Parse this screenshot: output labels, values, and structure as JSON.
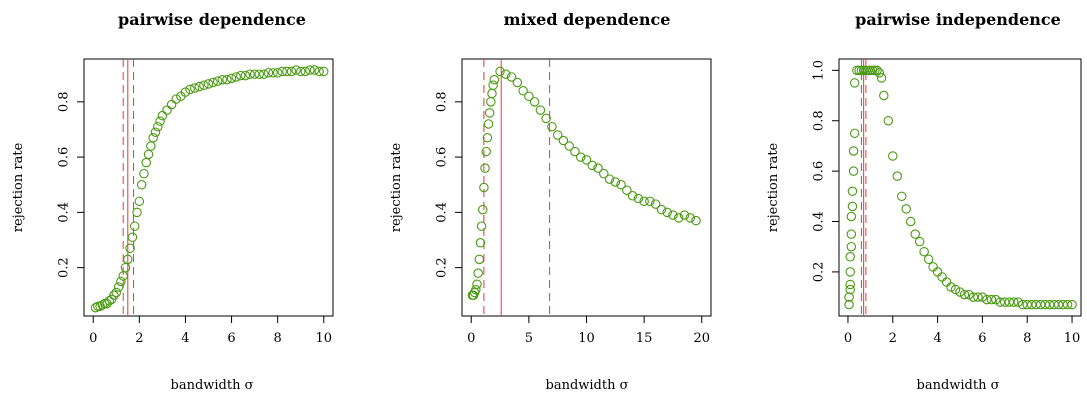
{
  "chart_data": [
    {
      "type": "scatter",
      "title": "pairwise dependence",
      "xlabel": "bandwidth σ",
      "ylabel": "rejection rate",
      "xlim": [
        -0.4,
        10.4
      ],
      "ylim": [
        0.025,
        0.955
      ],
      "xticks": [
        0,
        2,
        4,
        6,
        8,
        10
      ],
      "yticks": [
        0.2,
        0.4,
        0.6,
        0.8
      ],
      "vlines": {
        "solid": [
          1.5
        ],
        "dashed": [
          1.3,
          1.75
        ]
      },
      "series": [
        {
          "x": [
            0.1,
            0.2,
            0.3,
            0.4,
            0.5,
            0.6,
            0.7,
            0.8,
            0.9,
            1.0,
            1.1,
            1.2,
            1.3,
            1.4,
            1.5,
            1.6,
            1.7,
            1.8,
            1.9,
            2.0,
            2.1,
            2.2,
            2.3,
            2.4,
            2.5,
            2.6,
            2.7,
            2.8,
            2.9,
            3.0,
            3.2,
            3.4,
            3.6,
            3.8,
            4.0,
            4.2,
            4.4,
            4.6,
            4.8,
            5.0,
            5.2,
            5.4,
            5.6,
            5.8,
            6.0,
            6.2,
            6.4,
            6.6,
            6.8,
            7.0,
            7.2,
            7.4,
            7.6,
            7.8,
            8.0,
            8.2,
            8.4,
            8.6,
            8.8,
            9.0,
            9.2,
            9.4,
            9.6,
            9.8,
            10.0
          ],
          "y": [
            0.055,
            0.06,
            0.06,
            0.065,
            0.07,
            0.07,
            0.08,
            0.085,
            0.1,
            0.11,
            0.13,
            0.15,
            0.17,
            0.2,
            0.23,
            0.27,
            0.31,
            0.35,
            0.4,
            0.44,
            0.5,
            0.54,
            0.58,
            0.61,
            0.64,
            0.67,
            0.69,
            0.71,
            0.73,
            0.75,
            0.77,
            0.79,
            0.81,
            0.82,
            0.835,
            0.845,
            0.85,
            0.855,
            0.86,
            0.865,
            0.87,
            0.875,
            0.88,
            0.88,
            0.885,
            0.89,
            0.895,
            0.895,
            0.9,
            0.9,
            0.9,
            0.9,
            0.905,
            0.905,
            0.905,
            0.91,
            0.91,
            0.91,
            0.915,
            0.91,
            0.91,
            0.915,
            0.915,
            0.91,
            0.91
          ]
        }
      ]
    },
    {
      "type": "scatter",
      "title": "mixed dependence",
      "xlabel": "bandwidth σ",
      "ylabel": "rejection rate",
      "xlim": [
        -0.8,
        20.8
      ],
      "ylim": [
        0.025,
        0.955
      ],
      "xticks": [
        0,
        5,
        10,
        15,
        20
      ],
      "yticks": [
        0.2,
        0.4,
        0.6,
        0.8
      ],
      "vlines": {
        "solid": [
          2.6
        ],
        "dashed": [
          1.1,
          6.8
        ]
      },
      "series": [
        {
          "x": [
            0.1,
            0.2,
            0.3,
            0.4,
            0.5,
            0.6,
            0.7,
            0.8,
            0.9,
            1.0,
            1.1,
            1.2,
            1.3,
            1.4,
            1.5,
            1.6,
            1.7,
            1.8,
            1.9,
            2.0,
            2.5,
            3.0,
            3.5,
            4.0,
            4.5,
            5.0,
            5.5,
            6.0,
            6.5,
            7.0,
            7.5,
            8.0,
            8.5,
            9.0,
            9.5,
            10.0,
            10.5,
            11.0,
            11.5,
            12.0,
            12.5,
            13.0,
            13.5,
            14.0,
            14.5,
            15.0,
            15.5,
            16.0,
            16.5,
            17.0,
            17.5,
            18.0,
            18.5,
            19.0,
            19.5
          ],
          "y": [
            0.1,
            0.1,
            0.11,
            0.12,
            0.14,
            0.18,
            0.23,
            0.29,
            0.35,
            0.41,
            0.49,
            0.56,
            0.62,
            0.67,
            0.72,
            0.76,
            0.8,
            0.83,
            0.86,
            0.88,
            0.91,
            0.9,
            0.89,
            0.87,
            0.84,
            0.82,
            0.8,
            0.77,
            0.74,
            0.71,
            0.68,
            0.66,
            0.64,
            0.62,
            0.6,
            0.59,
            0.57,
            0.56,
            0.54,
            0.52,
            0.51,
            0.5,
            0.48,
            0.46,
            0.45,
            0.44,
            0.44,
            0.43,
            0.41,
            0.4,
            0.39,
            0.38,
            0.39,
            0.38,
            0.37
          ]
        }
      ]
    },
    {
      "type": "scatter",
      "title": "pairwise independence",
      "xlabel": "bandwidth σ",
      "ylabel": "rejection rate",
      "xlim": [
        -0.4,
        10.4
      ],
      "ylim": [
        0.025,
        1.045
      ],
      "xticks": [
        0,
        2,
        4,
        6,
        8,
        10
      ],
      "yticks": [
        0.2,
        0.4,
        0.6,
        0.8,
        1.0
      ],
      "ytick_labels": [
        "0.2",
        "0.4",
        "0.6",
        "0.8",
        "1.0"
      ],
      "vlines": {
        "solid": [
          0.7
        ],
        "dashed": [
          0.6,
          0.8
        ]
      },
      "series": [
        {
          "x": [
            0.05,
            0.05,
            0.1,
            0.1,
            0.1,
            0.1,
            0.15,
            0.15,
            0.15,
            0.2,
            0.2,
            0.25,
            0.25,
            0.3,
            0.3,
            0.4,
            0.5,
            0.6,
            0.7,
            0.8,
            0.9,
            1.0,
            1.1,
            1.2,
            1.3,
            1.4,
            1.5,
            1.6,
            1.8,
            2.0,
            2.2,
            2.4,
            2.6,
            2.8,
            3.0,
            3.2,
            3.4,
            3.6,
            3.8,
            4.0,
            4.2,
            4.4,
            4.6,
            4.8,
            5.0,
            5.2,
            5.4,
            5.6,
            5.8,
            6.0,
            6.2,
            6.4,
            6.6,
            6.8,
            7.0,
            7.2,
            7.4,
            7.6,
            7.8,
            8.0,
            8.2,
            8.4,
            8.6,
            8.8,
            9.0,
            9.2,
            9.4,
            9.6,
            9.8,
            10.0
          ],
          "y": [
            0.07,
            0.1,
            0.13,
            0.15,
            0.2,
            0.26,
            0.3,
            0.35,
            0.42,
            0.46,
            0.52,
            0.6,
            0.68,
            0.75,
            0.95,
            1.0,
            1.0,
            1.0,
            1.0,
            1.0,
            1.0,
            1.0,
            1.0,
            1.0,
            1.0,
            0.99,
            0.97,
            0.9,
            0.8,
            0.66,
            0.58,
            0.5,
            0.45,
            0.4,
            0.35,
            0.32,
            0.28,
            0.25,
            0.22,
            0.2,
            0.18,
            0.16,
            0.14,
            0.13,
            0.12,
            0.11,
            0.11,
            0.1,
            0.1,
            0.1,
            0.09,
            0.09,
            0.09,
            0.08,
            0.08,
            0.08,
            0.08,
            0.08,
            0.07,
            0.07,
            0.07,
            0.07,
            0.07,
            0.07,
            0.07,
            0.07,
            0.07,
            0.07,
            0.07,
            0.07
          ]
        }
      ]
    }
  ]
}
